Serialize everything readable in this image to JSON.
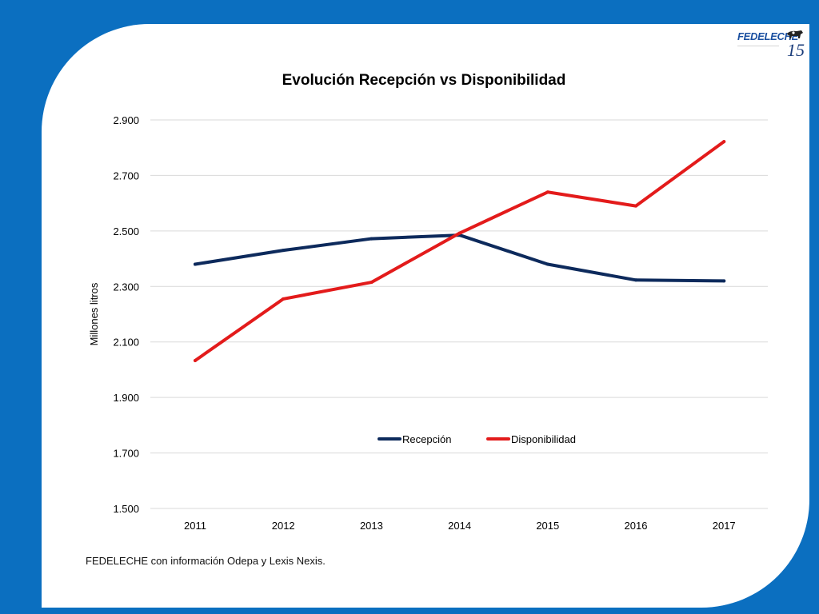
{
  "colors": {
    "background": "#0b6fc0",
    "card": "#ffffff",
    "recepcion": "#0d2a5c",
    "disponibilidad": "#e31b1b",
    "grid": "#d9d9d9"
  },
  "logo": {
    "text": "FEDELECHE",
    "number": "15"
  },
  "chart_data": {
    "type": "line",
    "title": "Evolución Recepción vs Disponibilidad",
    "xlabel": "",
    "ylabel": "Millones litros",
    "categories": [
      "2011",
      "2012",
      "2013",
      "2014",
      "2015",
      "2016",
      "2017"
    ],
    "y_ticks": [
      "1.500",
      "1.700",
      "1.900",
      "2.100",
      "2.300",
      "2.500",
      "2.700",
      "2.900"
    ],
    "ylim": [
      1500,
      2900
    ],
    "grid": true,
    "legend": "bottom-center",
    "series": [
      {
        "name": "Recepción",
        "color": "#0d2a5c",
        "values": [
          2380,
          2430,
          2472,
          2485,
          2380,
          2323,
          2320
        ]
      },
      {
        "name": "Disponibilidad",
        "color": "#e31b1b",
        "values": [
          2033,
          2255,
          2315,
          2492,
          2640,
          2590,
          2822
        ]
      }
    ]
  },
  "source": "FEDELECHE con información Odepa y Lexis Nexis."
}
